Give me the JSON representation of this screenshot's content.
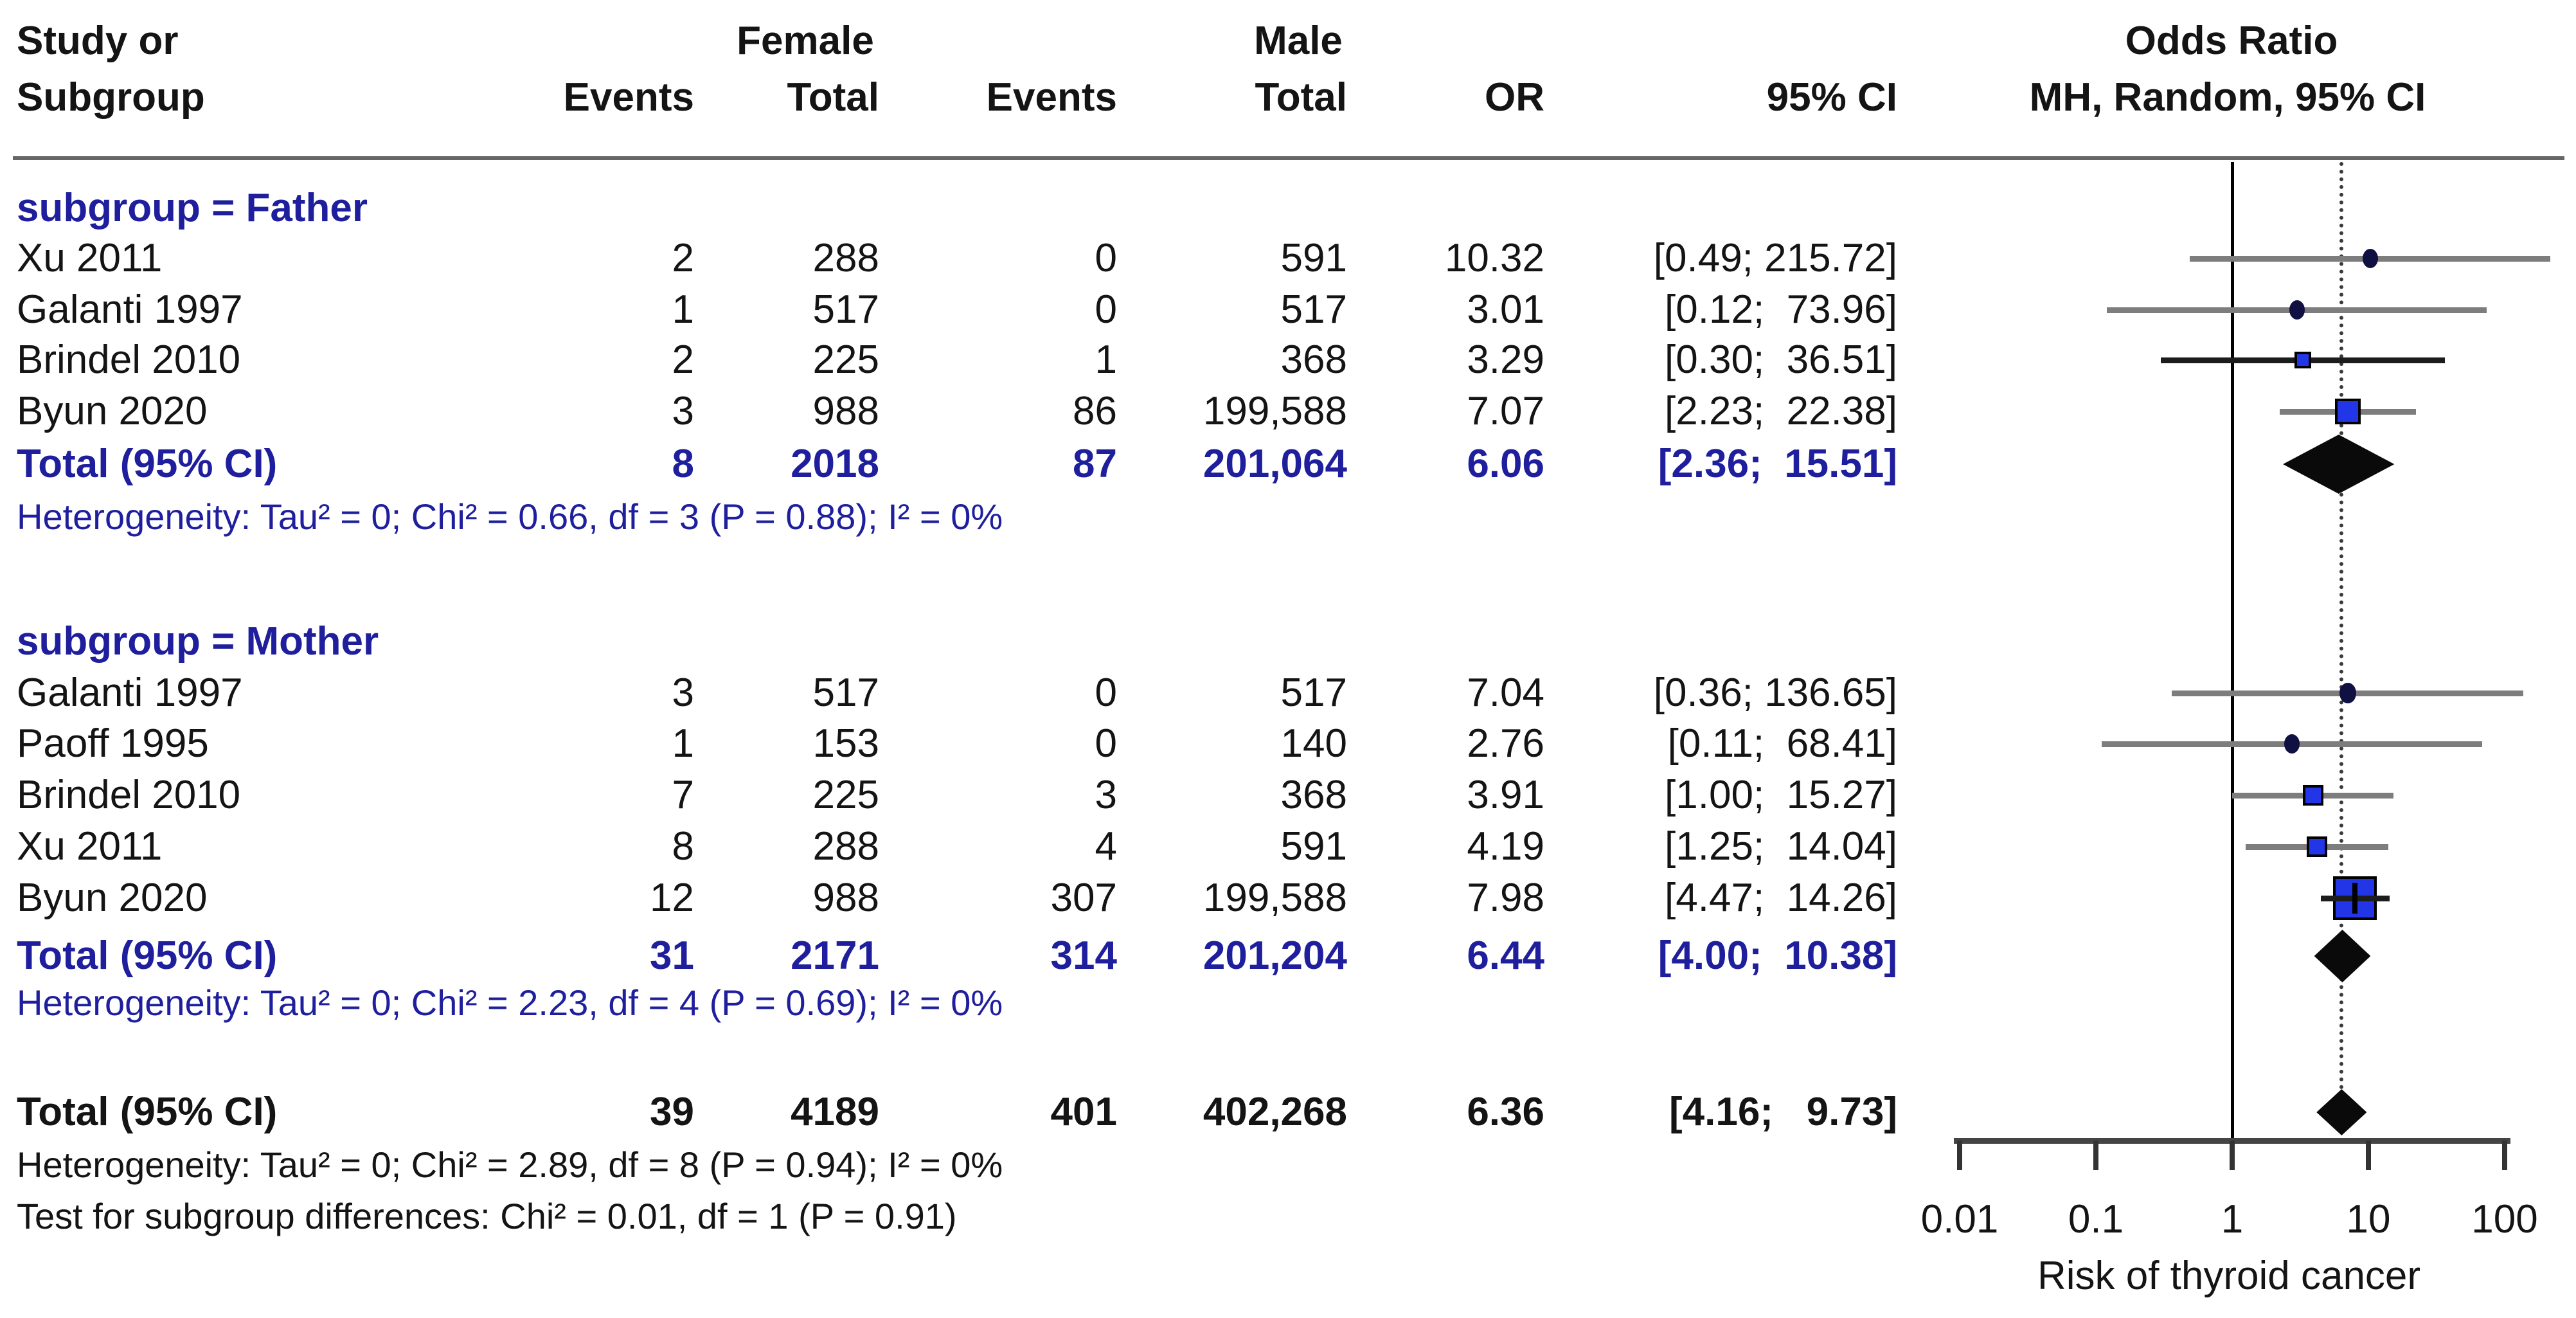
{
  "header": {
    "study_line1": "Study or",
    "study_line2": "Subgroup",
    "female_group": "Female",
    "male_group": "Male",
    "female_events": "Events",
    "female_total": "Total",
    "male_events": "Events",
    "male_total": "Total",
    "or": "OR",
    "ci": "95% CI",
    "effect_line1": "Odds Ratio",
    "effect_line2": "MH, Random, 95% CI"
  },
  "colors": {
    "blue_text": "#1f1f9e",
    "black_text": "#141414",
    "marker_fill": "#2236e8",
    "marker_border": "#000000",
    "diamond": "#0a0a0a",
    "gray_line": "#7d7d7d",
    "dark_line": "#1c1c1c"
  },
  "chart_data": {
    "type": "forest",
    "xscale": "log10",
    "null_line": 1,
    "pooled_line": 6.36,
    "x_ticks": [
      0.01,
      0.1,
      1,
      10,
      100
    ],
    "x_tick_labels": [
      "0.01",
      "0.1",
      "1",
      "10",
      "100"
    ],
    "xlabel": "Risk of thyroid cancer",
    "groups": [
      {
        "label": "subgroup = Father",
        "studies": [
          {
            "name": "Xu 2011",
            "f_events": "2",
            "f_total": "288",
            "m_events": "0",
            "m_total": "591",
            "or_text": "10.32",
            "ci_text": "[0.49; 215.72]",
            "or": 10.32,
            "lo": 0.49,
            "hi": 215.72,
            "marker": "dot",
            "marker_size": 24,
            "line_shade": "gray",
            "plus": false
          },
          {
            "name": "Galanti 1997",
            "f_events": "1",
            "f_total": "517",
            "m_events": "0",
            "m_total": "517",
            "or_text": "3.01",
            "ci_text": "[0.12;  73.96]",
            "or": 3.01,
            "lo": 0.12,
            "hi": 73.96,
            "marker": "dot",
            "marker_size": 24,
            "line_shade": "gray",
            "plus": false
          },
          {
            "name": "Brindel 2010",
            "f_events": "2",
            "f_total": "225",
            "m_events": "1",
            "m_total": "368",
            "or_text": "3.29",
            "ci_text": "[0.30;  36.51]",
            "or": 3.29,
            "lo": 0.3,
            "hi": 36.51,
            "marker": "square",
            "marker_size": 26,
            "line_shade": "dark",
            "plus": false
          },
          {
            "name": "Byun 2020",
            "f_events": "3",
            "f_total": "988",
            "m_events": "86",
            "m_total": "199,588",
            "or_text": "7.07",
            "ci_text": "[2.23;  22.38]",
            "or": 7.07,
            "lo": 2.23,
            "hi": 22.38,
            "marker": "square",
            "marker_size": 40,
            "line_shade": "gray",
            "plus": false
          }
        ],
        "total": {
          "name": "Total (95% CI)",
          "f_events": "8",
          "f_total": "2018",
          "m_events": "87",
          "m_total": "201,064",
          "or_text": "6.06",
          "ci_text": "[2.36;  15.51]",
          "or": 6.06,
          "lo": 2.36,
          "hi": 15.51,
          "diamond_height": 92
        },
        "heterogeneity": "Heterogeneity: Tau² = 0; Chi² = 0.66, df = 3 (P = 0.88); I² = 0%"
      },
      {
        "label": "subgroup = Mother",
        "studies": [
          {
            "name": "Galanti 1997",
            "f_events": "3",
            "f_total": "517",
            "m_events": "0",
            "m_total": "517",
            "or_text": "7.04",
            "ci_text": "[0.36; 136.65]",
            "or": 7.04,
            "lo": 0.36,
            "hi": 136.65,
            "marker": "dot",
            "marker_size": 26,
            "line_shade": "gray",
            "plus": false
          },
          {
            "name": "Paoff 1995",
            "f_events": "1",
            "f_total": "153",
            "m_events": "0",
            "m_total": "140",
            "or_text": "2.76",
            "ci_text": "[0.11;  68.41]",
            "or": 2.76,
            "lo": 0.11,
            "hi": 68.41,
            "marker": "dot",
            "marker_size": 24,
            "line_shade": "gray",
            "plus": false
          },
          {
            "name": "Brindel 2010",
            "f_events": "7",
            "f_total": "225",
            "m_events": "3",
            "m_total": "368",
            "or_text": "3.91",
            "ci_text": "[1.00;  15.27]",
            "or": 3.91,
            "lo": 1.0,
            "hi": 15.27,
            "marker": "square",
            "marker_size": 32,
            "line_shade": "gray",
            "plus": false
          },
          {
            "name": "Xu 2011",
            "f_events": "8",
            "f_total": "288",
            "m_events": "4",
            "m_total": "591",
            "or_text": "4.19",
            "ci_text": "[1.25;  14.04]",
            "or": 4.19,
            "lo": 1.25,
            "hi": 14.04,
            "marker": "square",
            "marker_size": 32,
            "line_shade": "gray",
            "plus": false
          },
          {
            "name": "Byun 2020",
            "f_events": "12",
            "f_total": "988",
            "m_events": "307",
            "m_total": "199,588",
            "or_text": "7.98",
            "ci_text": "[4.47;  14.26]",
            "or": 7.98,
            "lo": 4.47,
            "hi": 14.26,
            "marker": "square",
            "marker_size": 68,
            "line_shade": "dark",
            "plus": true
          }
        ],
        "total": {
          "name": "Total (95% CI)",
          "f_events": "31",
          "f_total": "2171",
          "m_events": "314",
          "m_total": "201,204",
          "or_text": "6.44",
          "ci_text": "[4.00;  10.38]",
          "or": 6.44,
          "lo": 4.0,
          "hi": 10.38,
          "diamond_height": 82
        },
        "heterogeneity": "Heterogeneity: Tau² = 0; Chi² = 2.23, df = 4 (P = 0.69); I² = 0%"
      }
    ],
    "overall": {
      "total": {
        "name": "Total (95% CI)",
        "f_events": "39",
        "f_total": "4189",
        "m_events": "401",
        "m_total": "402,268",
        "or_text": "6.36",
        "ci_text": "[4.16;   9.73]",
        "or": 6.36,
        "lo": 4.16,
        "hi": 9.73,
        "diamond_height": 72
      },
      "heterogeneity": "Heterogeneity: Tau² = 0; Chi² = 2.89, df = 8 (P = 0.94); I² = 0%",
      "subgroup_test": "Test for subgroup differences: Chi² = 0.01, df = 1 (P = 0.91)"
    }
  }
}
